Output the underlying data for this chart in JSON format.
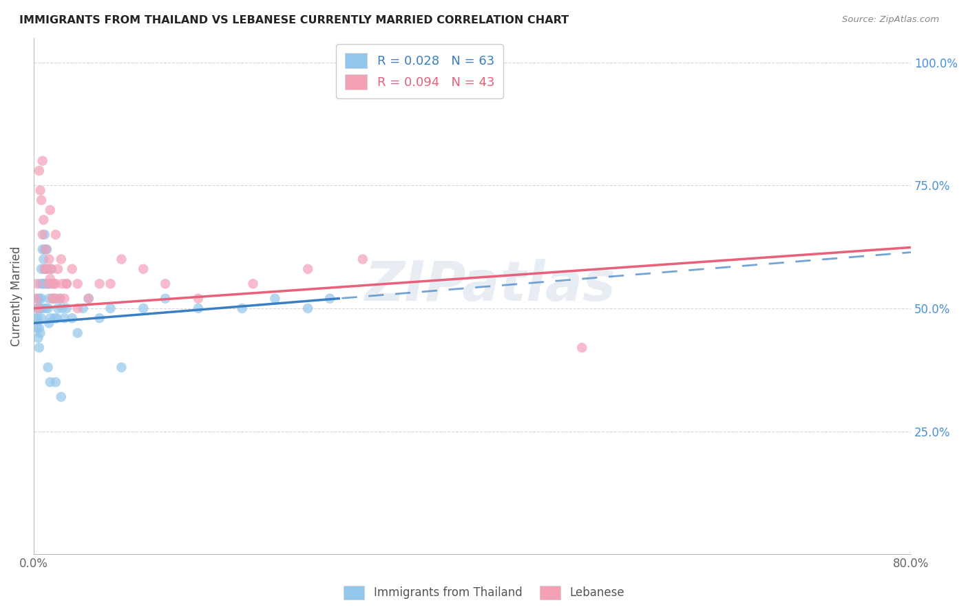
{
  "title": "IMMIGRANTS FROM THAILAND VS LEBANESE CURRENTLY MARRIED CORRELATION CHART",
  "source": "Source: ZipAtlas.com",
  "series1_label": "Immigrants from Thailand",
  "series2_label": "Lebanese",
  "series1_color": "#93C6EC",
  "series2_color": "#F4A0B5",
  "series1_line_color": "#3A7FC1",
  "series2_line_color": "#E8607A",
  "watermark": "ZIPatlas",
  "xlim": [
    0,
    0.8
  ],
  "ylim": [
    0,
    1.05
  ],
  "background_color": "#ffffff",
  "grid_color": "#cccccc",
  "thailand_x": [
    0.002,
    0.003,
    0.003,
    0.004,
    0.004,
    0.004,
    0.005,
    0.005,
    0.005,
    0.005,
    0.006,
    0.006,
    0.006,
    0.007,
    0.007,
    0.007,
    0.008,
    0.008,
    0.008,
    0.009,
    0.009,
    0.01,
    0.01,
    0.01,
    0.011,
    0.011,
    0.012,
    0.012,
    0.013,
    0.013,
    0.014,
    0.014,
    0.015,
    0.015,
    0.016,
    0.017,
    0.018,
    0.019,
    0.02,
    0.021,
    0.022,
    0.024,
    0.026,
    0.028,
    0.03,
    0.035,
    0.04,
    0.045,
    0.05,
    0.06,
    0.07,
    0.08,
    0.1,
    0.12,
    0.15,
    0.19,
    0.22,
    0.25,
    0.27,
    0.013,
    0.015,
    0.02,
    0.025
  ],
  "thailand_y": [
    0.48,
    0.5,
    0.46,
    0.52,
    0.48,
    0.44,
    0.5,
    0.46,
    0.52,
    0.42,
    0.55,
    0.5,
    0.45,
    0.58,
    0.52,
    0.48,
    0.62,
    0.55,
    0.5,
    0.6,
    0.55,
    0.65,
    0.62,
    0.58,
    0.55,
    0.5,
    0.62,
    0.58,
    0.55,
    0.5,
    0.52,
    0.47,
    0.55,
    0.48,
    0.58,
    0.52,
    0.55,
    0.48,
    0.52,
    0.48,
    0.5,
    0.52,
    0.5,
    0.48,
    0.5,
    0.48,
    0.45,
    0.5,
    0.52,
    0.48,
    0.5,
    0.38,
    0.5,
    0.52,
    0.5,
    0.5,
    0.52,
    0.5,
    0.52,
    0.38,
    0.35,
    0.35,
    0.32
  ],
  "lebanese_x": [
    0.002,
    0.003,
    0.004,
    0.005,
    0.006,
    0.007,
    0.008,
    0.009,
    0.01,
    0.011,
    0.012,
    0.013,
    0.014,
    0.015,
    0.016,
    0.017,
    0.018,
    0.019,
    0.02,
    0.022,
    0.024,
    0.026,
    0.028,
    0.03,
    0.035,
    0.04,
    0.05,
    0.06,
    0.07,
    0.08,
    0.1,
    0.12,
    0.15,
    0.2,
    0.25,
    0.3,
    0.008,
    0.015,
    0.02,
    0.025,
    0.03,
    0.04,
    0.5
  ],
  "lebanese_y": [
    0.52,
    0.55,
    0.5,
    0.78,
    0.74,
    0.72,
    0.65,
    0.68,
    0.58,
    0.62,
    0.58,
    0.55,
    0.6,
    0.56,
    0.58,
    0.52,
    0.55,
    0.52,
    0.55,
    0.58,
    0.52,
    0.55,
    0.52,
    0.55,
    0.58,
    0.55,
    0.52,
    0.55,
    0.55,
    0.6,
    0.58,
    0.55,
    0.52,
    0.55,
    0.58,
    0.6,
    0.8,
    0.7,
    0.65,
    0.6,
    0.55,
    0.5,
    0.42
  ],
  "r1": "0.028",
  "n1": "63",
  "r2": "0.094",
  "n2": "43"
}
